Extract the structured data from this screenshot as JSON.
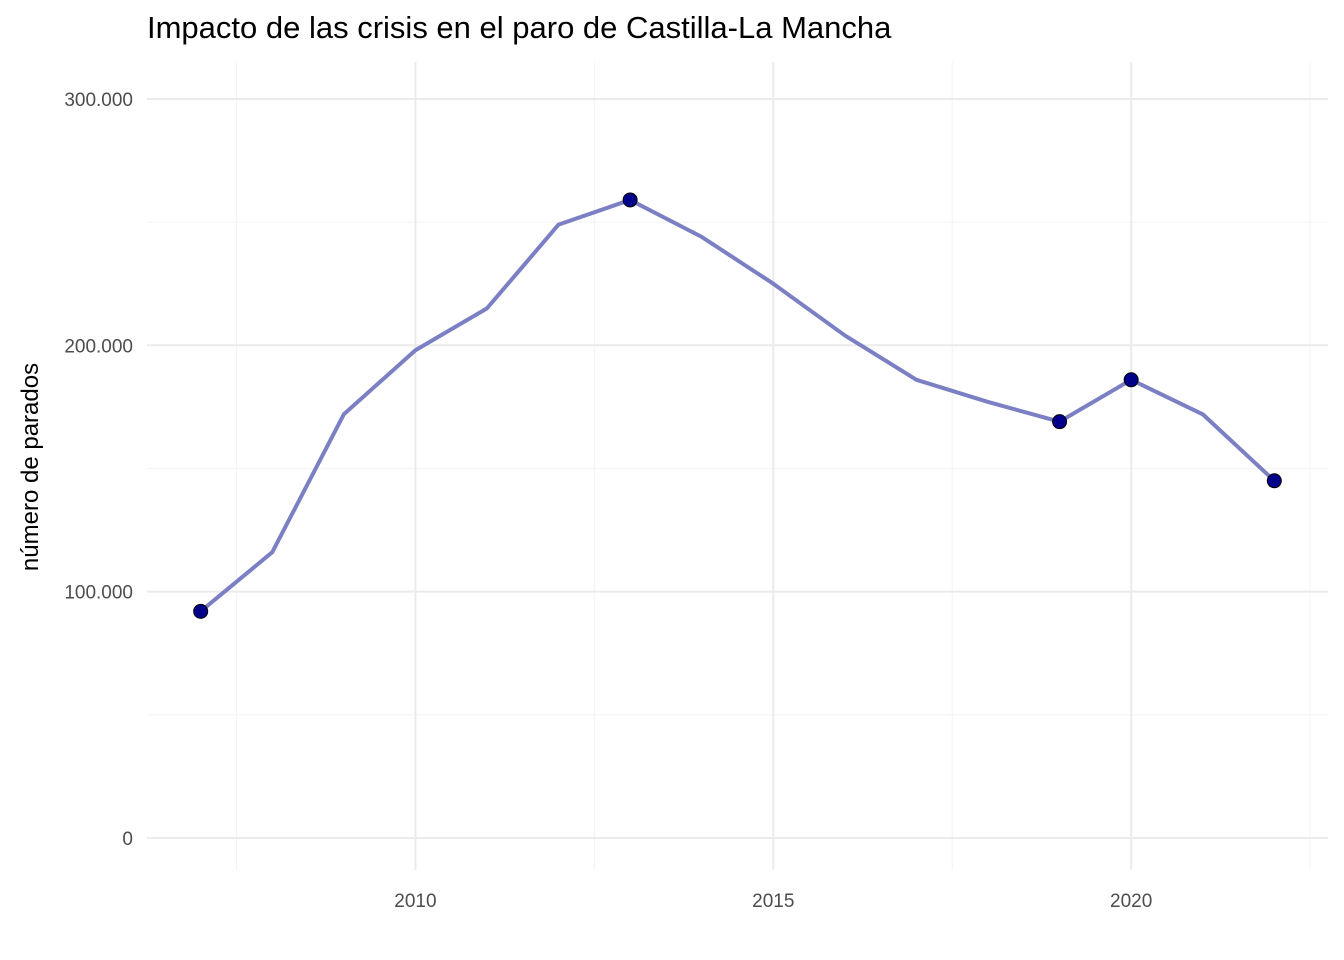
{
  "chart_data": {
    "type": "line",
    "title": "Impacto de las crisis en el paro de Castilla-La Mancha",
    "xlabel": "",
    "ylabel": "número de parados",
    "x": [
      2007,
      2008,
      2009,
      2010,
      2011,
      2012,
      2013,
      2014,
      2015,
      2016,
      2017,
      2018,
      2019,
      2020,
      2021,
      2022
    ],
    "series": [
      {
        "values": [
          92000,
          116000,
          172000,
          198000,
          215000,
          249000,
          259000,
          244000,
          225000,
          204000,
          186000,
          177000,
          169000,
          186000,
          172000,
          145000
        ]
      }
    ],
    "highlighted_points": [
      {
        "x": 2007,
        "y": 92000
      },
      {
        "x": 2013,
        "y": 259000
      },
      {
        "x": 2019,
        "y": 169000
      },
      {
        "x": 2020,
        "y": 186000
      },
      {
        "x": 2022,
        "y": 145000
      }
    ],
    "xlim": [
      2006.25,
      2022.75
    ],
    "ylim": [
      -13000,
      315000
    ],
    "x_ticks": [
      2010,
      2015,
      2020
    ],
    "x_tick_labels": [
      "2010",
      "2015",
      "2020"
    ],
    "x_minor_ticks": [
      2007.5,
      2012.5,
      2017.5,
      2022.5
    ],
    "y_ticks": [
      0,
      100000,
      200000,
      300000
    ],
    "y_tick_labels": [
      "0",
      "100.000",
      "200.000",
      "300.000"
    ],
    "y_minor_ticks": [
      50000,
      150000,
      250000
    ],
    "grid": true,
    "legend": "none",
    "colors": {
      "line": "#7b7fc4",
      "point": "#00008b",
      "grid_major": "#ebebeb",
      "grid_minor": "#f4f4f4",
      "tick_text": "#4d4d4d"
    }
  }
}
